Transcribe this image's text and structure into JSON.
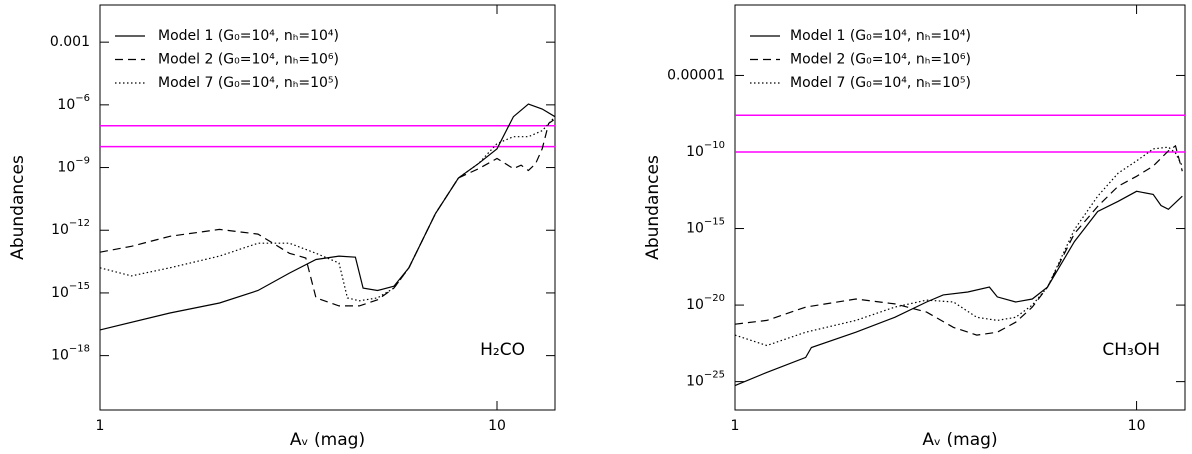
{
  "chart_data": [
    {
      "type": "line",
      "y_label": "Abundances",
      "x_label": "Aᵥ (mag)",
      "annotation": "H₂CO",
      "xlog": true,
      "ylog": true,
      "xlim": [
        1,
        14
      ],
      "ylim": [
        2.5e-21,
        0.06
      ],
      "xticks": [
        1,
        10
      ],
      "yticks": [
        {
          "value": 0.001,
          "label": "0.001"
        },
        {
          "value": 1e-06,
          "label": "10−6"
        },
        {
          "value": 1e-09,
          "label": "10−9"
        },
        {
          "value": 1e-12,
          "label": "10−12"
        },
        {
          "value": 1e-15,
          "label": "10−15"
        },
        {
          "value": 1e-18,
          "label": "10−18"
        }
      ],
      "hlines": [
        1e-07,
        1e-08
      ],
      "hline_color": "#ff00ff",
      "series": [
        {
          "name": "Model 1 (G₀=10⁴, nₕ=10⁴)",
          "color": "#000000",
          "style": "solid",
          "x": [
            1,
            1.5,
            2,
            2.5,
            3,
            3.5,
            4,
            4.4,
            4.6,
            5,
            5.5,
            6,
            7,
            8,
            9,
            10,
            11,
            12,
            13,
            14
          ],
          "values": [
            1.7e-17,
            1.1e-16,
            3.3e-16,
            1.3e-15,
            8.9e-15,
            4e-14,
            5.8e-14,
            5.1e-14,
            1.7e-15,
            1.3e-15,
            2.1e-15,
            1.6e-14,
            6.3e-12,
            3.2e-10,
            1.6e-09,
            7.9e-09,
            2.7e-07,
            1.1e-06,
            6.3e-07,
            2.7e-07
          ]
        },
        {
          "name": "Model 2 (G₀=10⁴, nₕ=10⁶)",
          "color": "#000000",
          "style": "dashed",
          "x": [
            1,
            1.2,
            1.5,
            2,
            2.5,
            3,
            3.3,
            3.5,
            4,
            4.5,
            5,
            5.5,
            6,
            7,
            8,
            9,
            10,
            11,
            11.5,
            12,
            12.5,
            13,
            13.5,
            14
          ],
          "values": [
            8.9e-14,
            1.7e-13,
            5.1e-13,
            1.1e-12,
            6.5e-13,
            7.9e-14,
            4.7e-14,
            5.8e-16,
            2.4e-16,
            2.4e-16,
            4.7e-16,
            1.7e-15,
            1.6e-14,
            6.3e-12,
            3.2e-10,
            8.9e-10,
            2.7e-09,
            8.9e-10,
            1.3e-09,
            7.2e-10,
            1.5e-09,
            7.9e-09,
            1.3e-07,
            2.1e-07
          ]
        },
        {
          "name": "Model 7 (G₀=10⁴, nₕ=10⁵)",
          "color": "#000000",
          "style": "dotted",
          "x": [
            1,
            1.2,
            1.5,
            2,
            2.5,
            3,
            3.5,
            4,
            4.2,
            4.5,
            5,
            5.5,
            6,
            7,
            8,
            9,
            10,
            11,
            12,
            13,
            14
          ],
          "values": [
            1.6e-14,
            6.5e-15,
            1.6e-14,
            5.8e-14,
            2.4e-13,
            2.4e-13,
            7.9e-14,
            2.7e-14,
            5.8e-16,
            4.2e-16,
            5.8e-16,
            1.7e-15,
            1.6e-14,
            6.3e-12,
            3.2e-10,
            1.6e-09,
            1.4e-08,
            3e-08,
            3e-08,
            5.8e-08,
            2.7e-07
          ]
        }
      ]
    },
    {
      "type": "line",
      "y_label": "Abundances",
      "x_label": "Aᵥ (mag)",
      "annotation": "CH₃OH",
      "xlog": true,
      "ylog": true,
      "xlim": [
        1,
        13.2
      ],
      "ylim": [
        1.4e-27,
        0.4
      ],
      "xticks": [
        1,
        10
      ],
      "yticks": [
        {
          "value": 1e-05,
          "label": "0.00001"
        },
        {
          "value": 1e-10,
          "label": "10−10"
        },
        {
          "value": 1e-15,
          "label": "10−15"
        },
        {
          "value": 1e-20,
          "label": "10−20"
        },
        {
          "value": 1e-25,
          "label": "10−25"
        }
      ],
      "hlines": [
        2.5e-08,
        1e-10
      ],
      "hline_color": "#ff00ff",
      "series": [
        {
          "name": "Model 1 (G₀=10⁴, nₕ=10⁴)",
          "color": "#000000",
          "style": "solid",
          "x": [
            1,
            1.2,
            1.5,
            1.55,
            2,
            2.5,
            3,
            3.3,
            3.8,
            4.3,
            4.5,
            5,
            5.5,
            6,
            7,
            8,
            9,
            10,
            11,
            11.5,
            12,
            13
          ],
          "values": [
            5.5e-26,
            4e-25,
            3.8e-24,
            1.7e-23,
            1.7e-22,
            1.6e-21,
            1.6e-20,
            4.6e-20,
            7.2e-20,
            1.5e-19,
            3.4e-20,
            1.6e-20,
            2.5e-20,
            1.5e-19,
            1.4e-16,
            1.3e-14,
            6e-14,
            2.7e-13,
            1.7e-13,
            3.2e-14,
            1.8e-14,
            1.3e-13
          ]
        },
        {
          "name": "Model 2 (G₀=10⁴, nₕ=10⁶)",
          "color": "#000000",
          "style": "dashed",
          "x": [
            1,
            1.2,
            1.5,
            2,
            2.5,
            3,
            3.5,
            4,
            4.5,
            5,
            5.5,
            6,
            7,
            8,
            9,
            10,
            11,
            12,
            12.5,
            13
          ],
          "values": [
            5.6e-22,
            1e-21,
            7.4e-21,
            2.5e-20,
            1.2e-20,
            3.5e-21,
            3.5e-22,
            1.1e-22,
            1.7e-22,
            7.6e-22,
            7.4e-21,
            1.5e-19,
            4.7e-16,
            2.8e-14,
            5.8e-13,
            2.6e-12,
            1.2e-11,
            1.2e-10,
            2.5e-10,
            5.6e-12
          ]
        },
        {
          "name": "Model 7 (G₀=10⁴, nₕ=10⁵)",
          "color": "#000000",
          "style": "dotted",
          "x": [
            1,
            1.2,
            1.5,
            2,
            2.5,
            3,
            3.5,
            4,
            4.5,
            5,
            5.5,
            6,
            7,
            8,
            9,
            10,
            11,
            12,
            12.5,
            13
          ],
          "values": [
            1.1e-22,
            2.3e-23,
            1.7e-22,
            1e-21,
            7.4e-21,
            2.1e-20,
            1.6e-20,
            1.6e-21,
            1e-21,
            1.6e-21,
            1e-20,
            1.5e-19,
            8.5e-16,
            1.3e-13,
            4.2e-12,
            2.6e-11,
            1.6e-10,
            2.1e-10,
            8.5e-11,
            1.2e-11
          ]
        }
      ]
    }
  ]
}
